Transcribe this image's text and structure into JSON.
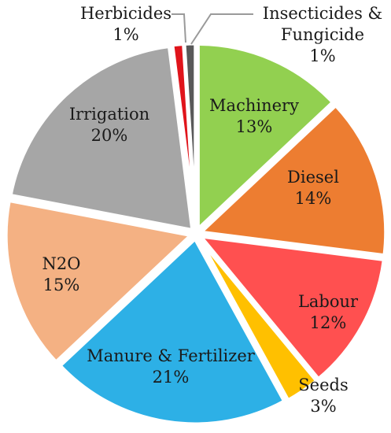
{
  "chart_data": {
    "type": "pie",
    "title": "",
    "categories": [
      "Machinery",
      "Diesel",
      "Labour",
      "Seeds",
      "Manure & Fertilizer",
      "N2O",
      "Irrigation",
      "Herbicides",
      "Insecticides & Fungicide"
    ],
    "values": [
      13,
      14,
      12,
      3,
      21,
      15,
      20,
      1,
      1
    ],
    "value_labels": [
      "13%",
      "14%",
      "12%",
      "3%",
      "21%",
      "15%",
      "20%",
      "1%",
      "1%"
    ],
    "colors": [
      "#92d050",
      "#ed7d31",
      "#ff5050",
      "#ffc000",
      "#2db0e6",
      "#f4b183",
      "#a6a6a6",
      "#e0141b",
      "#595959"
    ],
    "legend": "none",
    "label_lines": [
      [
        "Machinery",
        "13%"
      ],
      [
        "Diesel",
        "14%"
      ],
      [
        "Labour",
        "12%"
      ],
      [
        "Seeds",
        "3%"
      ],
      [
        "Manure & Fertilizer",
        "21%"
      ],
      [
        "N2O",
        "15%"
      ],
      [
        "Irrigation",
        "20%"
      ],
      [
        "Herbicides",
        "1%"
      ],
      [
        "Insecticides &",
        "Fungicide",
        "1%"
      ]
    ]
  }
}
